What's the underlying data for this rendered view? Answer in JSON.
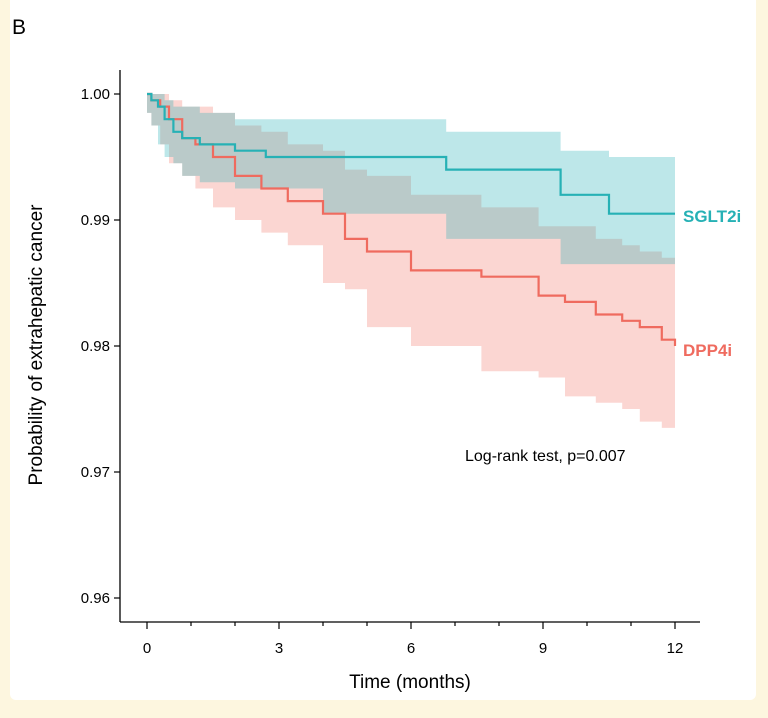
{
  "chart_data": {
    "type": "line",
    "panel_label": "B",
    "title": "",
    "xlabel": "Time (months)",
    "ylabel": "Probability of  extrahepatic cancer",
    "xlim": [
      0,
      12
    ],
    "ylim": [
      0.96,
      1.0
    ],
    "x_ticks": [
      "0",
      "3",
      "6",
      "9",
      "12"
    ],
    "y_ticks": [
      "1.00",
      "0.99",
      "0.98",
      "0.97",
      "0.96"
    ],
    "annotation": "Log-rank test, p=0.007",
    "colors": {
      "SGLT2i": "#26b1b5",
      "DPP4i": "#ef6b5f"
    },
    "series": [
      {
        "name": "SGLT2i",
        "color": "#26b1b5",
        "x": [
          0,
          0.1,
          0.25,
          0.4,
          0.6,
          0.8,
          1.2,
          2.0,
          2.7,
          4.0,
          6.8,
          9.4,
          10.5,
          12
        ],
        "y": [
          1.0,
          0.9995,
          0.999,
          0.998,
          0.997,
          0.9965,
          0.996,
          0.9955,
          0.995,
          0.995,
          0.994,
          0.992,
          0.9905,
          0.9905
        ],
        "lower": [
          1.0,
          0.9985,
          0.9975,
          0.996,
          0.995,
          0.9945,
          0.9935,
          0.993,
          0.9925,
          0.9925,
          0.9905,
          0.9885,
          0.9865,
          0.9865
        ],
        "upper": [
          1.0,
          1.0,
          1.0,
          0.9995,
          0.999,
          0.999,
          0.9985,
          0.998,
          0.998,
          0.998,
          0.997,
          0.9955,
          0.995,
          0.995
        ]
      },
      {
        "name": "DPP4i",
        "color": "#ef6b5f",
        "x": [
          0,
          0.1,
          0.3,
          0.5,
          0.8,
          1.1,
          1.5,
          2.0,
          2.6,
          3.2,
          4.0,
          4.5,
          5.0,
          6.0,
          7.6,
          8.9,
          9.5,
          10.2,
          10.8,
          11.2,
          11.7,
          12
        ],
        "y": [
          1.0,
          0.9995,
          0.999,
          0.998,
          0.9965,
          0.996,
          0.995,
          0.9935,
          0.9925,
          0.9915,
          0.9905,
          0.9885,
          0.9875,
          0.986,
          0.9855,
          0.984,
          0.9835,
          0.9825,
          0.982,
          0.9815,
          0.9805,
          0.98
        ],
        "lower": [
          1.0,
          0.9985,
          0.9975,
          0.996,
          0.9945,
          0.9935,
          0.9925,
          0.991,
          0.99,
          0.989,
          0.988,
          0.985,
          0.9845,
          0.9815,
          0.98,
          0.978,
          0.9775,
          0.976,
          0.9755,
          0.975,
          0.974,
          0.9735
        ],
        "upper": [
          1.0,
          1.0,
          1.0,
          0.9995,
          0.999,
          0.999,
          0.9985,
          0.9975,
          0.997,
          0.996,
          0.9955,
          0.994,
          0.9935,
          0.992,
          0.991,
          0.9895,
          0.9895,
          0.9885,
          0.988,
          0.9875,
          0.987,
          0.9865
        ]
      }
    ]
  }
}
